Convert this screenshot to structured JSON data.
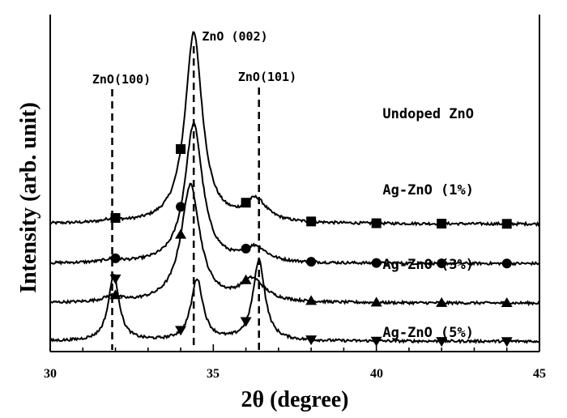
{
  "chart_data": {
    "type": "line",
    "xlabel": "2θ (degree)",
    "ylabel": "Intensity (arb. unit)",
    "xlim": [
      30,
      45
    ],
    "xticks": [
      "30",
      "35",
      "40",
      "45"
    ],
    "y_ticks_shown": false,
    "peak_markers": [
      {
        "label": "ZnO(100)",
        "x": 31.9
      },
      {
        "label": "ZnO (002)",
        "x": 34.4
      },
      {
        "label": "ZnO(101)",
        "x": 36.4
      }
    ],
    "series": [
      {
        "name": "Undoped ZnO",
        "marker": "square",
        "baseline": 0.82,
        "peaks": [
          [
            31.9,
            0.02,
            0.3
          ],
          [
            34.4,
            1.3,
            0.32
          ],
          [
            36.3,
            0.15,
            0.4
          ]
        ],
        "marker_x": [
          32,
          34,
          36,
          38,
          40,
          42,
          44
        ]
      },
      {
        "name": "Ag-ZnO (1%)",
        "marker": "circle",
        "baseline": 0.55,
        "peaks": [
          [
            31.9,
            0.02,
            0.3
          ],
          [
            34.4,
            0.95,
            0.33
          ],
          [
            36.3,
            0.1,
            0.4
          ]
        ],
        "marker_x": [
          32,
          34,
          36,
          38,
          40,
          42,
          44
        ]
      },
      {
        "name": "Ag-ZnO (3%)",
        "marker": "triangle-up",
        "baseline": 0.28,
        "peaks": [
          [
            31.9,
            0.04,
            0.3
          ],
          [
            34.3,
            0.8,
            0.35
          ],
          [
            36.2,
            0.15,
            0.45
          ]
        ],
        "marker_x": [
          32,
          34,
          36,
          38,
          40,
          42,
          44
        ]
      },
      {
        "name": "Ag-ZnO (5%)",
        "marker": "triangle-down",
        "baseline": 0.02,
        "peaks": [
          [
            31.95,
            0.45,
            0.2
          ],
          [
            34.5,
            0.42,
            0.22
          ],
          [
            36.4,
            0.55,
            0.22
          ]
        ],
        "marker_x": [
          32,
          34,
          36,
          38,
          40,
          42,
          44
        ]
      }
    ]
  }
}
